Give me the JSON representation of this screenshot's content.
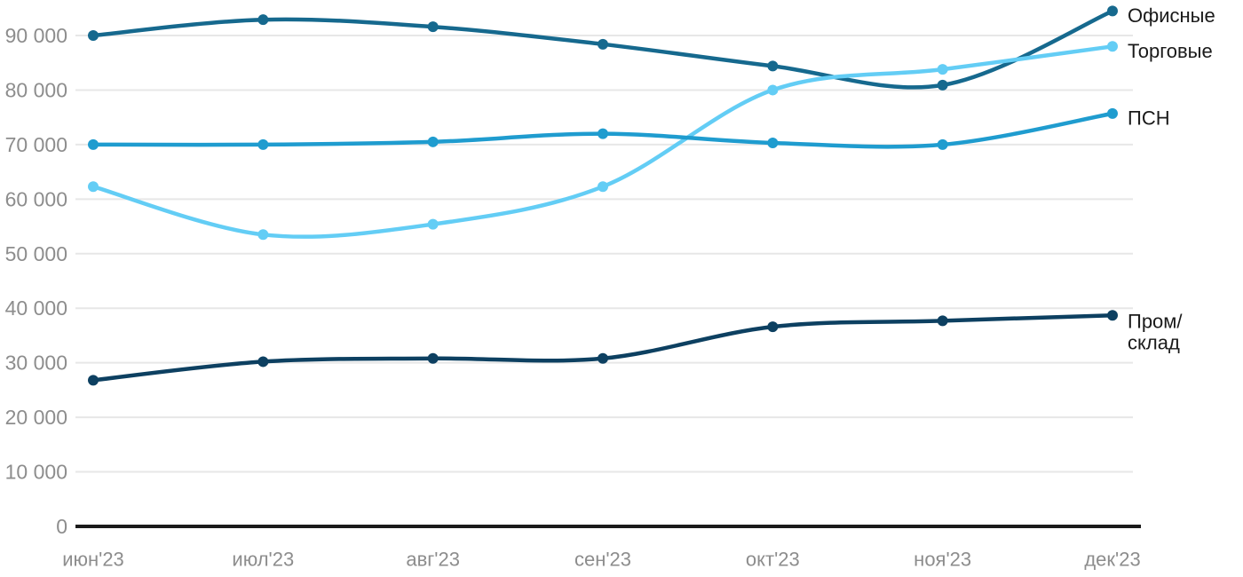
{
  "chart_data": {
    "type": "line",
    "categories": [
      "июн'23",
      "июл'23",
      "авг'23",
      "сен'23",
      "окт'23",
      "ноя'23",
      "дек'23"
    ],
    "series": [
      {
        "id": "offices",
        "name": "Офисные",
        "label_lines": [
          "Офисные"
        ],
        "color": "#16698e",
        "values": [
          90000,
          92900,
          91600,
          88400,
          84400,
          80900,
          94500
        ]
      },
      {
        "id": "retail",
        "name": "Торговые",
        "label_lines": [
          "Торговые"
        ],
        "color": "#63cdf5",
        "values": [
          62300,
          53500,
          55400,
          62300,
          80000,
          83800,
          88000
        ]
      },
      {
        "id": "psn",
        "name": "ПСН",
        "label_lines": [
          "ПСН"
        ],
        "color": "#1f9ccf",
        "values": [
          70000,
          70000,
          70500,
          72000,
          70300,
          70000,
          75700
        ]
      },
      {
        "id": "industrial",
        "name": "Пром/склад",
        "label_lines": [
          "Пром/",
          "склад"
        ],
        "color": "#0d4061",
        "values": [
          26800,
          30200,
          30800,
          30800,
          36600,
          37700,
          38700
        ]
      }
    ],
    "yticks": [
      0,
      10000,
      20000,
      30000,
      40000,
      50000,
      60000,
      70000,
      80000,
      90000
    ],
    "ytick_labels": [
      "0",
      "10 000",
      "20 000",
      "30 000",
      "40 000",
      "50 000",
      "60 000",
      "70 000",
      "80 000",
      "90 000"
    ],
    "ylim": [
      0,
      95000
    ],
    "grid": true,
    "legend_position": "right-end",
    "colors": {
      "tick_text": "#8d8d8d",
      "gridline": "#e7e7e7",
      "zero_axis": "#1a1a1a",
      "series_label_text": "#1a1a1a",
      "background": "#ffffff"
    }
  }
}
